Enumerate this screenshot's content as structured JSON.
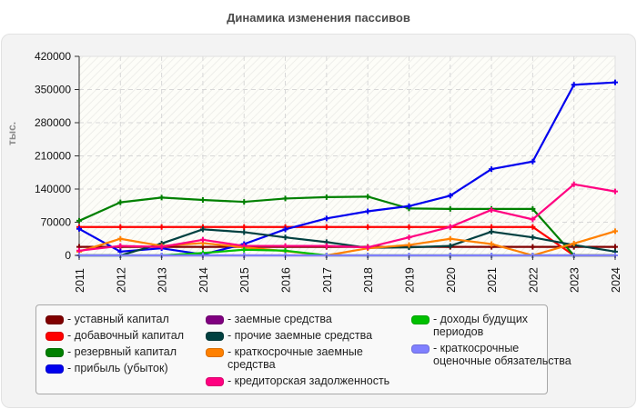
{
  "title": "Динамика изменения пассивов",
  "chart_data": {
    "type": "line",
    "title": "Динамика изменения пассивов",
    "xlabel": "",
    "ylabel": "тыс.",
    "ylim": [
      0,
      420000
    ],
    "yticks": [
      0,
      70000,
      140000,
      210000,
      280000,
      350000,
      420000
    ],
    "grid": true,
    "legend_position": "bottom",
    "categories": [
      "2011",
      "2012",
      "2013",
      "2014",
      "2015",
      "2016",
      "2017",
      "2018",
      "2019",
      "2020",
      "2021",
      "2022",
      "2023",
      "2024"
    ],
    "series": [
      {
        "name": "уставный капитал",
        "color": "#800000",
        "values": [
          18000,
          18000,
          18000,
          18000,
          18000,
          18000,
          18000,
          18000,
          18000,
          18000,
          18000,
          18000,
          18000,
          18000
        ]
      },
      {
        "name": "добавочный капитал",
        "color": "#ff0000",
        "values": [
          60000,
          60000,
          60000,
          60000,
          60000,
          60000,
          60000,
          60000,
          60000,
          60000,
          60000,
          60000,
          0,
          0
        ]
      },
      {
        "name": "резервный капитал",
        "color": "#008000",
        "values": [
          73000,
          112000,
          122000,
          117000,
          113000,
          120000,
          123000,
          124000,
          99000,
          98000,
          98000,
          98000,
          0,
          0
        ]
      },
      {
        "name": "прибыль (убыток)",
        "color": "#0000ee",
        "values": [
          56000,
          8000,
          15000,
          2000,
          24000,
          55000,
          78000,
          93000,
          104000,
          126000,
          182000,
          198000,
          360000,
          365000
        ]
      },
      {
        "name": "заемные средства",
        "color": "#800080",
        "values": [
          0,
          0,
          0,
          0,
          0,
          0,
          0,
          0,
          0,
          0,
          0,
          0,
          0,
          0
        ]
      },
      {
        "name": "прочие заемные средства",
        "color": "#004040",
        "values": [
          0,
          0,
          25000,
          55000,
          49000,
          38000,
          28000,
          16000,
          17000,
          20000,
          50000,
          38000,
          22000,
          8000
        ]
      },
      {
        "name": "краткосрочные заемные средства",
        "color": "#ff8000",
        "values": [
          8000,
          35000,
          20000,
          26000,
          17000,
          9000,
          0,
          15000,
          22000,
          35000,
          24000,
          0,
          25000,
          51000
        ]
      },
      {
        "name": "кредиторская задолженность",
        "color": "#ff0080",
        "values": [
          10000,
          20000,
          18000,
          33000,
          20000,
          20000,
          20000,
          17000,
          38000,
          60000,
          96000,
          76000,
          150000,
          135000
        ]
      },
      {
        "name": "доходы будущих периодов",
        "color": "#00c000",
        "values": [
          0,
          0,
          0,
          5000,
          12000,
          10000,
          0,
          0,
          0,
          0,
          0,
          0,
          0,
          0
        ]
      },
      {
        "name": "краткосрочные оценочные обязательства",
        "color": "#8080ff",
        "values": [
          0,
          0,
          0,
          0,
          0,
          0,
          0,
          0,
          0,
          0,
          0,
          0,
          0,
          0
        ]
      }
    ]
  },
  "legend": {
    "columns": [
      [
        {
          "label": "- уставный капитал",
          "color": "#800000"
        },
        {
          "label": "- добавочный капитал",
          "color": "#ff0000"
        },
        {
          "label": "- резервный капитал",
          "color": "#008000"
        },
        {
          "label": "- прибыль (убыток)",
          "color": "#0000ee"
        }
      ],
      [
        {
          "label": "- заемные средства",
          "color": "#800080"
        },
        {
          "label": "- прочие заемные средства",
          "color": "#004040"
        },
        {
          "label": "- краткосрочные заемные средства",
          "color": "#ff8000"
        },
        {
          "label": "- кредиторская задолженность",
          "color": "#ff0080"
        }
      ],
      [
        {
          "label": "- доходы будущих периодов",
          "color": "#00c000"
        },
        {
          "label": "- краткосрочные оценочные обязательства",
          "color": "#8080ff"
        }
      ]
    ]
  }
}
